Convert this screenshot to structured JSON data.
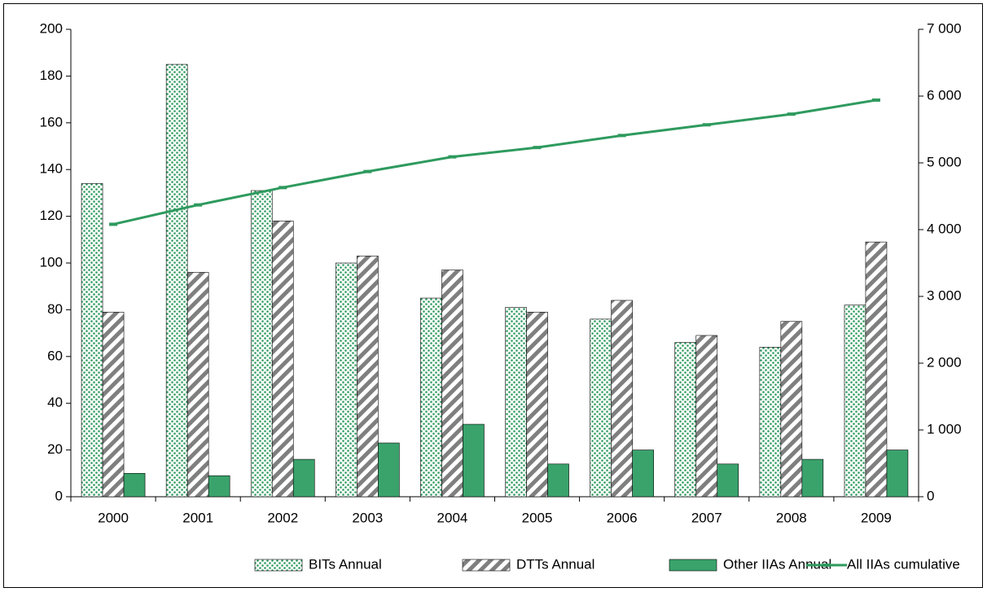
{
  "chart_data": {
    "type": "bar-line",
    "categories": [
      "2000",
      "2001",
      "2002",
      "2003",
      "2004",
      "2005",
      "2006",
      "2007",
      "2008",
      "2009"
    ],
    "series": [
      {
        "name": "BITs Annual",
        "color": "#2e9a5e",
        "pattern": "dots",
        "values": [
          134,
          185,
          131,
          100,
          85,
          81,
          76,
          66,
          64,
          82
        ]
      },
      {
        "name": "DTTs Annual",
        "color": "#7f7f7f",
        "pattern": "stripes",
        "values": [
          79,
          96,
          118,
          103,
          97,
          79,
          84,
          69,
          75,
          109
        ]
      },
      {
        "name": "Other IIAs Annual",
        "color": "#3aa36c",
        "pattern": "solid",
        "values": [
          10,
          9,
          16,
          23,
          31,
          14,
          20,
          14,
          16,
          20
        ]
      },
      {
        "name": "All IIAs cumulative",
        "color": "#2e9a5e",
        "type": "line",
        "axis": "y2",
        "values": [
          4080,
          4370,
          4630,
          4870,
          5090,
          5230,
          5410,
          5570,
          5730,
          5940
        ]
      }
    ],
    "ylim": [
      0,
      200
    ],
    "yticks": [
      0,
      20,
      40,
      60,
      80,
      100,
      120,
      140,
      160,
      180,
      200
    ],
    "y2lim": [
      0,
      7000
    ],
    "y2ticks": [
      0,
      {
        "value": 1000,
        "label": "1 000"
      },
      {
        "value": 2000,
        "label": "2 000"
      },
      {
        "value": 3000,
        "label": "3 000"
      },
      {
        "value": 4000,
        "label": "4 000"
      },
      {
        "value": 5000,
        "label": "5 000"
      },
      {
        "value": 6000,
        "label": "6 000"
      },
      {
        "value": 7000,
        "label": "7 000"
      }
    ],
    "grid": false,
    "legend": "bottom"
  }
}
